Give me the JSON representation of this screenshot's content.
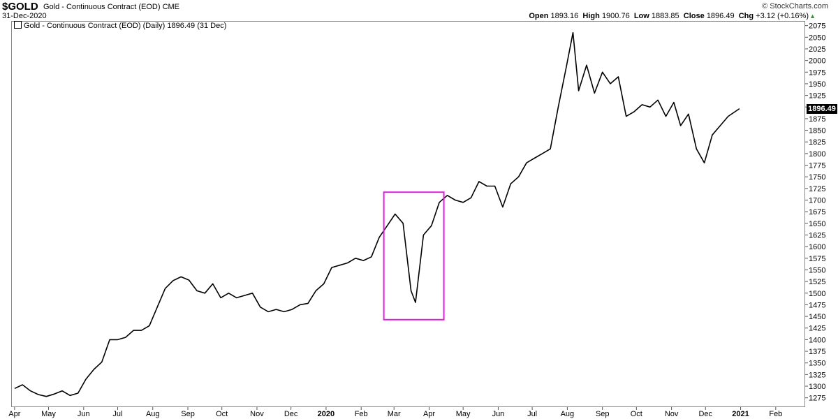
{
  "header": {
    "symbol": "$GOLD",
    "description": "Gold - Continuous Contract (EOD) CME",
    "date": "31-Dec-2020",
    "brand": "© StockCharts.com",
    "open_label": "Open",
    "open": "1893.16",
    "high_label": "High",
    "high": "1900.76",
    "low_label": "Low",
    "low": "1883.85",
    "close_label": "Close",
    "close": "1896.49",
    "chg_label": "Chg",
    "chg": "+3.12 (+0.16%)",
    "arrow": "▲"
  },
  "legend": {
    "text": "Gold - Continuous Contract (EOD) (Daily) 1896.49 (31 Dec)"
  },
  "last_price": "1896.49",
  "colors": {
    "price": "#000000",
    "highlight": "#e020e0",
    "up": "#2a9d2a",
    "last_bg": "#000000"
  },
  "chart_data": {
    "type": "line",
    "title": "",
    "xlabel": "",
    "ylabel": "",
    "ylim": [
      1255,
      2085
    ],
    "yticks": [
      1275,
      1300,
      1325,
      1350,
      1375,
      1400,
      1425,
      1450,
      1475,
      1500,
      1525,
      1550,
      1575,
      1600,
      1625,
      1650,
      1675,
      1700,
      1725,
      1750,
      1775,
      1800,
      1825,
      1850,
      1875,
      1900,
      1925,
      1950,
      1975,
      2000,
      2025,
      2050,
      2075
    ],
    "xticks": [
      {
        "label": "Apr",
        "date": "2019-04-01"
      },
      {
        "label": "May",
        "date": "2019-05-01"
      },
      {
        "label": "Jun",
        "date": "2019-06-01"
      },
      {
        "label": "Jul",
        "date": "2019-07-01"
      },
      {
        "label": "Aug",
        "date": "2019-08-01"
      },
      {
        "label": "Sep",
        "date": "2019-09-01"
      },
      {
        "label": "Oct",
        "date": "2019-10-01"
      },
      {
        "label": "Nov",
        "date": "2019-11-01"
      },
      {
        "label": "Dec",
        "date": "2019-12-01"
      },
      {
        "label": "2020",
        "date": "2020-01-01",
        "bold": true
      },
      {
        "label": "Feb",
        "date": "2020-02-01"
      },
      {
        "label": "Mar",
        "date": "2020-03-01"
      },
      {
        "label": "Apr",
        "date": "2020-04-01"
      },
      {
        "label": "May",
        "date": "2020-05-01"
      },
      {
        "label": "Jun",
        "date": "2020-06-01"
      },
      {
        "label": "Jul",
        "date": "2020-07-01"
      },
      {
        "label": "Aug",
        "date": "2020-08-01"
      },
      {
        "label": "Sep",
        "date": "2020-09-01"
      },
      {
        "label": "Oct",
        "date": "2020-10-01"
      },
      {
        "label": "Nov",
        "date": "2020-11-01"
      },
      {
        "label": "Dec",
        "date": "2020-12-01"
      },
      {
        "label": "2021",
        "date": "2021-01-01",
        "bold": true
      },
      {
        "label": "Feb",
        "date": "2021-02-01"
      }
    ],
    "grid": false,
    "series": [
      {
        "values": [
          [
            "2019-04-01",
            1295
          ],
          [
            "2019-04-08",
            1303
          ],
          [
            "2019-04-15",
            1290
          ],
          [
            "2019-04-22",
            1282
          ],
          [
            "2019-04-29",
            1278
          ],
          [
            "2019-05-06",
            1283
          ],
          [
            "2019-05-13",
            1290
          ],
          [
            "2019-05-20",
            1280
          ],
          [
            "2019-05-27",
            1285
          ],
          [
            "2019-06-03",
            1315
          ],
          [
            "2019-06-10",
            1336
          ],
          [
            "2019-06-17",
            1352
          ],
          [
            "2019-06-24",
            1400
          ],
          [
            "2019-07-01",
            1400
          ],
          [
            "2019-07-08",
            1405
          ],
          [
            "2019-07-15",
            1420
          ],
          [
            "2019-07-22",
            1420
          ],
          [
            "2019-07-29",
            1430
          ],
          [
            "2019-08-05",
            1470
          ],
          [
            "2019-08-12",
            1510
          ],
          [
            "2019-08-19",
            1527
          ],
          [
            "2019-08-26",
            1535
          ],
          [
            "2019-09-02",
            1528
          ],
          [
            "2019-09-09",
            1505
          ],
          [
            "2019-09-16",
            1500
          ],
          [
            "2019-09-23",
            1520
          ],
          [
            "2019-09-30",
            1490
          ],
          [
            "2019-10-07",
            1500
          ],
          [
            "2019-10-14",
            1490
          ],
          [
            "2019-10-21",
            1495
          ],
          [
            "2019-10-28",
            1500
          ],
          [
            "2019-11-04",
            1470
          ],
          [
            "2019-11-11",
            1460
          ],
          [
            "2019-11-18",
            1465
          ],
          [
            "2019-11-25",
            1460
          ],
          [
            "2019-12-02",
            1465
          ],
          [
            "2019-12-09",
            1475
          ],
          [
            "2019-12-16",
            1478
          ],
          [
            "2019-12-23",
            1505
          ],
          [
            "2019-12-30",
            1520
          ],
          [
            "2020-01-06",
            1555
          ],
          [
            "2020-01-13",
            1560
          ],
          [
            "2020-01-20",
            1565
          ],
          [
            "2020-01-27",
            1575
          ],
          [
            "2020-02-03",
            1570
          ],
          [
            "2020-02-10",
            1578
          ],
          [
            "2020-02-17",
            1620
          ],
          [
            "2020-02-24",
            1645
          ],
          [
            "2020-03-02",
            1670
          ],
          [
            "2020-03-09",
            1650
          ],
          [
            "2020-03-16",
            1505
          ],
          [
            "2020-03-20",
            1480
          ],
          [
            "2020-03-27",
            1625
          ],
          [
            "2020-04-03",
            1645
          ],
          [
            "2020-04-10",
            1695
          ],
          [
            "2020-04-17",
            1710
          ],
          [
            "2020-04-24",
            1700
          ],
          [
            "2020-05-01",
            1695
          ],
          [
            "2020-05-08",
            1705
          ],
          [
            "2020-05-15",
            1740
          ],
          [
            "2020-05-22",
            1730
          ],
          [
            "2020-05-29",
            1730
          ],
          [
            "2020-06-05",
            1685
          ],
          [
            "2020-06-12",
            1735
          ],
          [
            "2020-06-19",
            1750
          ],
          [
            "2020-06-26",
            1780
          ],
          [
            "2020-07-03",
            1790
          ],
          [
            "2020-07-10",
            1800
          ],
          [
            "2020-07-17",
            1810
          ],
          [
            "2020-07-24",
            1900
          ],
          [
            "2020-07-31",
            1985
          ],
          [
            "2020-08-06",
            2060
          ],
          [
            "2020-08-11",
            1935
          ],
          [
            "2020-08-18",
            1990
          ],
          [
            "2020-08-25",
            1930
          ],
          [
            "2020-09-01",
            1975
          ],
          [
            "2020-09-08",
            1950
          ],
          [
            "2020-09-15",
            1965
          ],
          [
            "2020-09-22",
            1880
          ],
          [
            "2020-09-29",
            1890
          ],
          [
            "2020-10-06",
            1905
          ],
          [
            "2020-10-13",
            1900
          ],
          [
            "2020-10-20",
            1915
          ],
          [
            "2020-10-27",
            1880
          ],
          [
            "2020-11-03",
            1910
          ],
          [
            "2020-11-09",
            1860
          ],
          [
            "2020-11-16",
            1885
          ],
          [
            "2020-11-23",
            1810
          ],
          [
            "2020-11-30",
            1780
          ],
          [
            "2020-12-07",
            1840
          ],
          [
            "2020-12-14",
            1860
          ],
          [
            "2020-12-21",
            1880
          ],
          [
            "2020-12-31",
            1896.49
          ]
        ]
      }
    ]
  },
  "highlight_box": {
    "from": "2020-02-21",
    "to": "2020-04-14",
    "low": 1443,
    "high": 1717
  }
}
